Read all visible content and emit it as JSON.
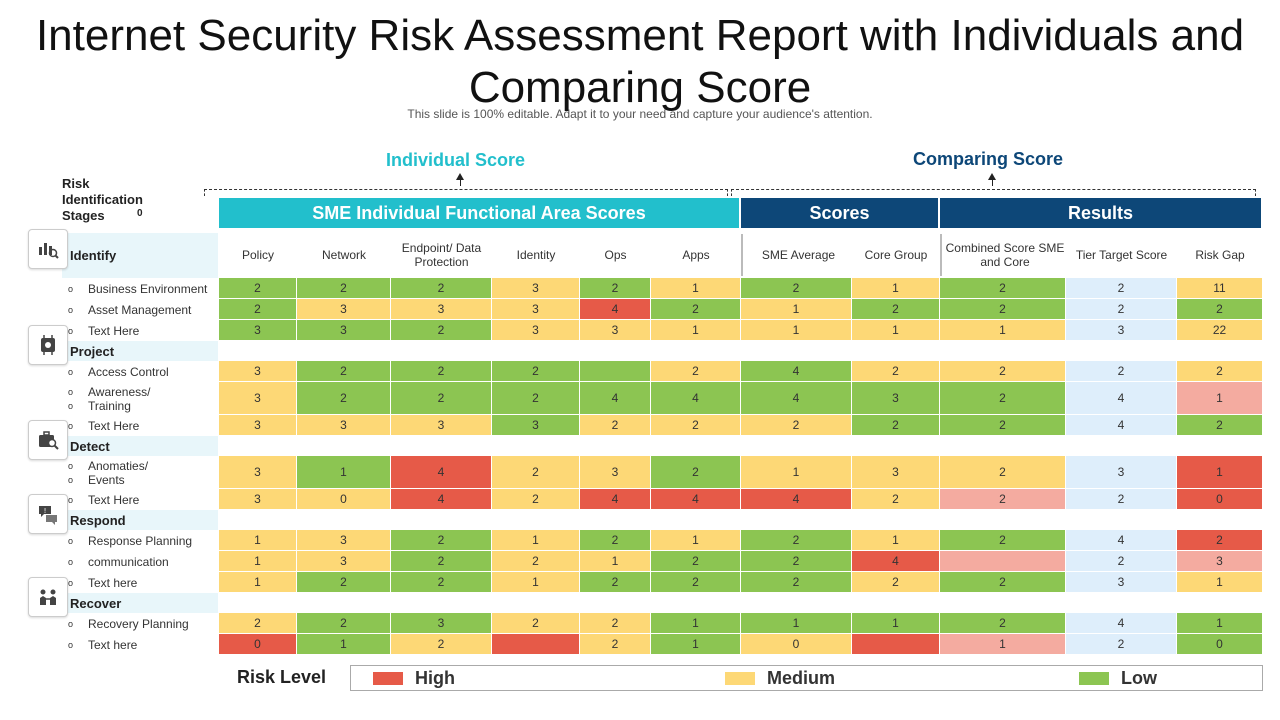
{
  "title": "Internet Security Risk Assessment Report with Individuals and Comparing Score",
  "subtitle": "This slide is 100% editable. Adapt it to your need and capture your audience's attention.",
  "individual_label": "Individual Score",
  "comparing_label": "Comparing Score",
  "stages_header": "Risk Identification Stages",
  "stages_zero": "0",
  "colors": {
    "High": "#e65a48",
    "Medium": "#fdd876",
    "Low": "#8cc552",
    "LowPink": "#f4aba0",
    "Blue": "#deeefb",
    "Teal": "#22bfcc",
    "Navy": "#0d4778"
  },
  "groups": [
    {
      "label": "SME Individual Functional Area Scores",
      "color": "Teal"
    },
    {
      "label": "Scores",
      "color": "Navy"
    },
    {
      "label": "Results",
      "color": "Navy"
    }
  ],
  "columns": [
    "Policy",
    "Network",
    "Endpoint/ Data Protection",
    "Identity",
    "Ops",
    "Apps",
    "SME Average",
    "Core Group",
    "Combined Score SME and Core",
    "Tier Target Score",
    "Risk Gap"
  ],
  "categories": [
    {
      "name": "Identify",
      "icon": "chart-search-icon",
      "rows": [
        {
          "label": "Business Environment",
          "values": [
            "2",
            "2",
            "2",
            "3",
            "2",
            "1",
            "2",
            "1",
            "2",
            "2",
            "11"
          ],
          "colors": [
            "L",
            "L",
            "L",
            "M",
            "L",
            "M",
            "L",
            "M",
            "L",
            "B",
            "M"
          ]
        },
        {
          "label": "Asset Management",
          "values": [
            "2",
            "3",
            "3",
            "3",
            "4",
            "2",
            "1",
            "2",
            "2",
            "2",
            "2"
          ],
          "colors": [
            "L",
            "M",
            "M",
            "M",
            "H",
            "L",
            "M",
            "L",
            "L",
            "B",
            "L"
          ]
        },
        {
          "label": "Text Here",
          "values": [
            "3",
            "3",
            "2",
            "3",
            "3",
            "1",
            "1",
            "1",
            "1",
            "3",
            "22"
          ],
          "colors": [
            "L",
            "L",
            "L",
            "M",
            "M",
            "M",
            "M",
            "M",
            "M",
            "B",
            "M"
          ]
        }
      ]
    },
    {
      "name": "Project",
      "icon": "chip-gear-icon",
      "rows": [
        {
          "label": "Access Control",
          "values": [
            "3",
            "2",
            "2",
            "2",
            "",
            "2",
            "4",
            "2",
            "2",
            "2",
            "2"
          ],
          "colors": [
            "M",
            "L",
            "L",
            "L",
            "L",
            "M",
            "L",
            "M",
            "M",
            "B",
            "M"
          ]
        },
        {
          "label": "Awareness/ Training",
          "values": [
            "3",
            "2",
            "2",
            "2",
            "4",
            "4",
            "4",
            "3",
            "2",
            "4",
            "1"
          ],
          "colors": [
            "M",
            "L",
            "L",
            "L",
            "L",
            "L",
            "L",
            "L",
            "L",
            "B",
            "P"
          ]
        },
        {
          "label": "Text Here",
          "values": [
            "3",
            "3",
            "3",
            "3",
            "2",
            "2",
            "2",
            "2",
            "2",
            "4",
            "2"
          ],
          "colors": [
            "M",
            "M",
            "M",
            "L",
            "M",
            "M",
            "M",
            "L",
            "L",
            "B",
            "L"
          ]
        }
      ]
    },
    {
      "name": "Detect",
      "icon": "briefcase-search-icon",
      "rows": [
        {
          "label": "Anomaties/ Events",
          "values": [
            "3",
            "1",
            "4",
            "2",
            "3",
            "2",
            "1",
            "3",
            "2",
            "3",
            "1"
          ],
          "colors": [
            "M",
            "L",
            "H",
            "M",
            "M",
            "L",
            "M",
            "M",
            "M",
            "B",
            "H"
          ]
        },
        {
          "label": "Text Here",
          "values": [
            "3",
            "0",
            "4",
            "2",
            "4",
            "4",
            "4",
            "2",
            "2",
            "2",
            "0"
          ],
          "colors": [
            "M",
            "M",
            "H",
            "M",
            "H",
            "H",
            "H",
            "M",
            "P",
            "B",
            "H"
          ]
        }
      ]
    },
    {
      "name": "Respond",
      "icon": "chat-alert-icon",
      "rows": [
        {
          "label": "Response Planning",
          "values": [
            "1",
            "3",
            "2",
            "1",
            "2",
            "1",
            "2",
            "1",
            "2",
            "4",
            "2"
          ],
          "colors": [
            "M",
            "M",
            "L",
            "M",
            "L",
            "M",
            "L",
            "M",
            "L",
            "B",
            "H"
          ]
        },
        {
          "label": "communication",
          "values": [
            "1",
            "3",
            "2",
            "2",
            "1",
            "2",
            "2",
            "4",
            "",
            "2",
            "3"
          ],
          "colors": [
            "M",
            "M",
            "L",
            "M",
            "M",
            "L",
            "L",
            "H",
            "P",
            "B",
            "P"
          ]
        },
        {
          "label": "Text here",
          "values": [
            "1",
            "2",
            "2",
            "1",
            "2",
            "2",
            "2",
            "2",
            "2",
            "3",
            "1"
          ],
          "colors": [
            "M",
            "L",
            "L",
            "M",
            "L",
            "L",
            "L",
            "M",
            "L",
            "B",
            "M"
          ]
        }
      ]
    },
    {
      "name": "Recover",
      "icon": "people-icon",
      "rows": [
        {
          "label": "Recovery Planning",
          "values": [
            "2",
            "2",
            "3",
            "2",
            "2",
            "1",
            "1",
            "1",
            "2",
            "4",
            "1"
          ],
          "colors": [
            "M",
            "L",
            "L",
            "M",
            "M",
            "L",
            "L",
            "L",
            "L",
            "B",
            "L"
          ]
        },
        {
          "label": "Text here",
          "values": [
            "0",
            "1",
            "2",
            "",
            "2",
            "1",
            "0",
            "",
            "1",
            "2",
            "0"
          ],
          "colors": [
            "H",
            "L",
            "M",
            "H",
            "M",
            "L",
            "M",
            "H",
            "P",
            "B",
            "L"
          ]
        }
      ]
    }
  ],
  "legend": {
    "title": "Risk Level",
    "items": [
      {
        "label": "High",
        "color": "High"
      },
      {
        "label": "Medium",
        "color": "Medium"
      },
      {
        "label": "Low",
        "color": "Low"
      }
    ]
  }
}
